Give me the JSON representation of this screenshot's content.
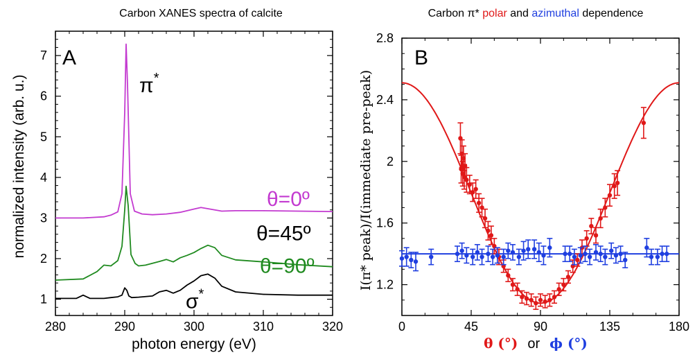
{
  "colors": {
    "magenta": "#c33ad0",
    "black": "#000000",
    "green": "#1f8a1f",
    "red": "#e01818",
    "blue": "#1f3fe0"
  },
  "chart_data": [
    {
      "type": "line",
      "title": "Carbon XANES spectra of calcite",
      "panel_label": "A",
      "xlabel": "photon energy (eV)",
      "ylabel": "normalized intensity (arb. u.)",
      "xlim": [
        280,
        320
      ],
      "ylim": [
        0.6,
        7.6
      ],
      "xticks": [
        280,
        290,
        300,
        310,
        320
      ],
      "yticks": [
        1,
        2,
        3,
        4,
        5,
        6,
        7
      ],
      "grid": false,
      "series": [
        {
          "name": "θ=0º",
          "color": "magenta",
          "x": [
            280,
            284,
            287,
            288,
            289,
            289.6,
            290,
            290.2,
            290.4,
            290.8,
            291.4,
            292.5,
            294,
            296,
            298,
            300,
            301,
            302,
            304,
            306,
            310,
            315,
            320
          ],
          "y": [
            3.0,
            3.0,
            3.03,
            3.07,
            3.15,
            3.6,
            5.6,
            7.28,
            6.3,
            3.6,
            3.17,
            3.1,
            3.08,
            3.1,
            3.14,
            3.22,
            3.26,
            3.23,
            3.17,
            3.18,
            3.18,
            3.17,
            3.16
          ]
        },
        {
          "name": "θ=90º",
          "color": "green",
          "x": [
            280,
            284,
            286,
            287,
            288,
            289,
            289.6,
            290,
            290.2,
            290.5,
            290.9,
            291.5,
            292,
            293,
            295,
            296,
            297,
            298,
            299,
            300,
            301,
            302,
            303,
            304,
            306,
            310,
            315,
            320
          ],
          "y": [
            1.47,
            1.5,
            1.68,
            1.84,
            1.82,
            1.95,
            2.3,
            3.2,
            3.78,
            3.3,
            2.1,
            1.88,
            1.82,
            1.84,
            1.93,
            1.98,
            1.92,
            2.02,
            2.08,
            2.15,
            2.25,
            2.33,
            2.27,
            2.08,
            1.97,
            1.92,
            1.85,
            1.8
          ]
        },
        {
          "name": "θ=45º",
          "color": "black",
          "x": [
            280,
            283,
            284,
            285,
            287,
            288,
            289,
            289.6,
            290,
            290.3,
            290.6,
            291,
            292,
            294,
            295,
            296,
            297,
            298,
            299,
            300,
            301,
            302,
            303,
            304,
            306,
            310,
            315,
            320
          ],
          "y": [
            1.02,
            1.02,
            1.1,
            1.02,
            1.02,
            1.04,
            1.06,
            1.1,
            1.28,
            1.22,
            1.08,
            1.04,
            1.05,
            1.08,
            1.18,
            1.22,
            1.15,
            1.22,
            1.35,
            1.45,
            1.58,
            1.62,
            1.52,
            1.32,
            1.18,
            1.12,
            1.1,
            1.1
          ]
        }
      ],
      "annotations": [
        {
          "text": "θ=0º",
          "color": "magenta",
          "x": 310.5,
          "y": 3.3
        },
        {
          "text": "θ=45º",
          "color": "black",
          "x": 309,
          "y": 2.45
        },
        {
          "text": "θ=90º",
          "color": "green",
          "x": 309.5,
          "y": 1.65
        },
        {
          "text": "π",
          "sup": "*",
          "color": "black",
          "x": 292.1,
          "y": 6.1
        },
        {
          "text": "σ",
          "sup": "*",
          "color": "black",
          "x": 298.8,
          "y": 0.78
        }
      ]
    },
    {
      "type": "scatter",
      "title": {
        "prefix": "Carbon π* ",
        "polar": "polar",
        "mid": " and ",
        "azimuthal": "azimuthal",
        "suffix": " dependence"
      },
      "panel_label": "B",
      "ylabel": "I(π* peak)/I(immediate pre-peak)",
      "xlabel": {
        "theta": "θ (°)",
        "or": "or",
        "phi": "ϕ (°)"
      },
      "xlim": [
        0,
        180
      ],
      "ylim": [
        1.0,
        2.8
      ],
      "xticks": [
        0,
        45,
        90,
        135,
        180
      ],
      "ytick_labels": [
        "1.2",
        "1.6",
        "2",
        "2.4",
        "2.8"
      ],
      "grid": false,
      "series": [
        {
          "name": "θ (°)",
          "color": "red",
          "points": [
            [
              38,
              2.15,
              0.1
            ],
            [
              38.5,
              1.95,
              0.09
            ],
            [
              39,
              2.05,
              0.09
            ],
            [
              39.5,
              1.92,
              0.08
            ],
            [
              40,
              2.02,
              0.08
            ],
            [
              40.5,
              1.9,
              0.08
            ],
            [
              41,
              1.97,
              0.08
            ],
            [
              42,
              1.88,
              0.08
            ],
            [
              44,
              1.85,
              0.06
            ],
            [
              46,
              1.8,
              0.06
            ],
            [
              48,
              1.82,
              0.06
            ],
            [
              50,
              1.73,
              0.06
            ],
            [
              52,
              1.7,
              0.06
            ],
            [
              54,
              1.63,
              0.06
            ],
            [
              56,
              1.55,
              0.06
            ],
            [
              58,
              1.52,
              0.06
            ],
            [
              60,
              1.45,
              0.05
            ],
            [
              63,
              1.38,
              0.05
            ],
            [
              66,
              1.32,
              0.04
            ],
            [
              69,
              1.26,
              0.04
            ],
            [
              72,
              1.2,
              0.04
            ],
            [
              75,
              1.17,
              0.04
            ],
            [
              78,
              1.12,
              0.04
            ],
            [
              81,
              1.11,
              0.04
            ],
            [
              84,
              1.1,
              0.04
            ],
            [
              87,
              1.08,
              0.04
            ],
            [
              90,
              1.1,
              0.04
            ],
            [
              93,
              1.09,
              0.04
            ],
            [
              96,
              1.1,
              0.04
            ],
            [
              99,
              1.12,
              0.04
            ],
            [
              102,
              1.17,
              0.04
            ],
            [
              105,
              1.2,
              0.04
            ],
            [
              108,
              1.25,
              0.04
            ],
            [
              111,
              1.32,
              0.04
            ],
            [
              114,
              1.36,
              0.04
            ],
            [
              117,
              1.44,
              0.05
            ],
            [
              120,
              1.5,
              0.05
            ],
            [
              123,
              1.58,
              0.05
            ],
            [
              126,
              1.52,
              0.05
            ],
            [
              129,
              1.63,
              0.06
            ],
            [
              132,
              1.7,
              0.06
            ],
            [
              135,
              1.78,
              0.07
            ],
            [
              138,
              1.84,
              0.08
            ],
            [
              140,
              1.86,
              0.08
            ],
            [
              157,
              2.25,
              0.1
            ]
          ]
        },
        {
          "name": "ϕ (°)",
          "color": "blue",
          "points": [
            [
              0,
              1.37,
              0.05
            ],
            [
              3,
              1.38,
              0.06
            ],
            [
              6,
              1.36,
              0.05
            ],
            [
              9,
              1.35,
              0.06
            ],
            [
              19,
              1.38,
              0.05
            ],
            [
              36,
              1.4,
              0.05
            ],
            [
              39,
              1.42,
              0.05
            ],
            [
              42,
              1.39,
              0.05
            ],
            [
              46,
              1.38,
              0.05
            ],
            [
              49,
              1.41,
              0.05
            ],
            [
              52,
              1.38,
              0.05
            ],
            [
              56,
              1.4,
              0.05
            ],
            [
              59,
              1.38,
              0.05
            ],
            [
              62,
              1.39,
              0.05
            ],
            [
              66,
              1.38,
              0.05
            ],
            [
              69,
              1.42,
              0.05
            ],
            [
              72,
              1.41,
              0.05
            ],
            [
              76,
              1.38,
              0.05
            ],
            [
              79,
              1.42,
              0.06
            ],
            [
              82,
              1.43,
              0.06
            ],
            [
              86,
              1.43,
              0.06
            ],
            [
              89,
              1.41,
              0.06
            ],
            [
              92,
              1.39,
              0.06
            ],
            [
              96,
              1.44,
              0.06
            ],
            [
              106,
              1.4,
              0.05
            ],
            [
              109,
              1.4,
              0.05
            ],
            [
              112,
              1.38,
              0.05
            ],
            [
              116,
              1.39,
              0.05
            ],
            [
              119,
              1.4,
              0.05
            ],
            [
              122,
              1.38,
              0.05
            ],
            [
              126,
              1.41,
              0.05
            ],
            [
              129,
              1.4,
              0.05
            ],
            [
              132,
              1.38,
              0.05
            ],
            [
              136,
              1.42,
              0.05
            ],
            [
              139,
              1.39,
              0.05
            ],
            [
              142,
              1.4,
              0.05
            ],
            [
              145,
              1.36,
              0.05
            ],
            [
              159,
              1.44,
              0.06
            ],
            [
              162,
              1.38,
              0.05
            ],
            [
              166,
              1.38,
              0.05
            ],
            [
              169,
              1.4,
              0.05
            ],
            [
              172,
              1.4,
              0.05
            ]
          ]
        }
      ],
      "fits": [
        {
          "color": "red",
          "form": "a + b*cos^2(theta)",
          "a": 1.08,
          "b": 1.43
        },
        {
          "color": "blue",
          "form": "constant",
          "a": 1.4
        }
      ]
    }
  ]
}
